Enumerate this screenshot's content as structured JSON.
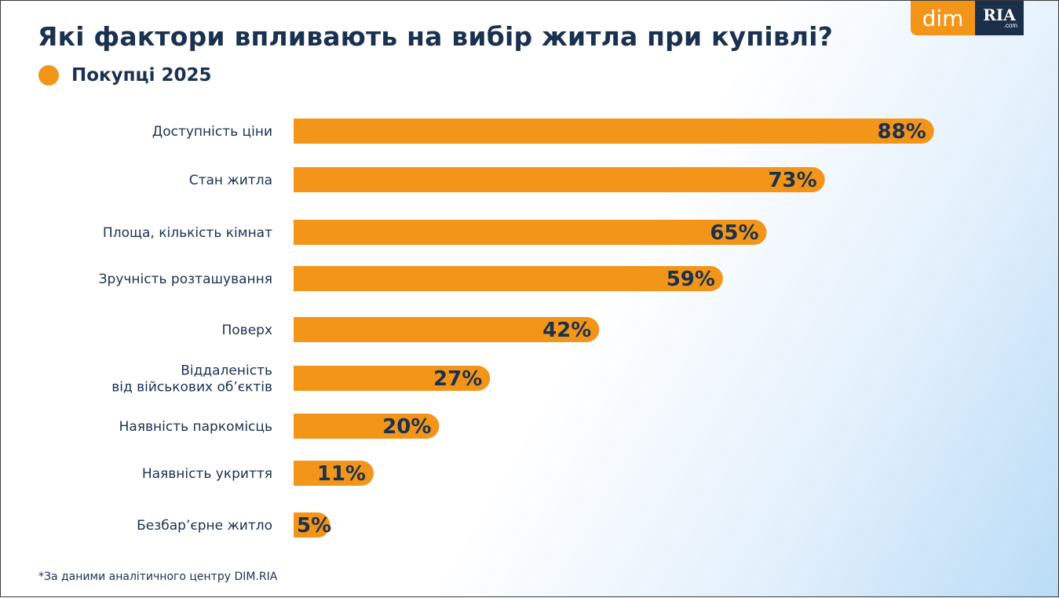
{
  "title": "Які фактори впливають на вибір житла при купівлі?",
  "logo": {
    "left": "dim",
    "right": "RIA",
    "right_sub": ".com"
  },
  "footnote": "*За даними аналітичного центру DIM.RIA",
  "colors": {
    "bar": "#f39519",
    "text": "#1a3150"
  },
  "chart_data": {
    "type": "bar",
    "orientation": "horizontal",
    "title": "Які фактори впливають на вибір житла при купівлі?",
    "legend": [
      {
        "name": "Покупці 2025",
        "color": "#f39519"
      }
    ],
    "legend_position": "top-left",
    "categories": [
      [
        "Доступність ціни"
      ],
      [
        "Стан житла"
      ],
      [
        "Площа, кількість кімнат"
      ],
      [
        "Зручність розташування"
      ],
      [
        "Поверх"
      ],
      [
        "Віддаленість",
        "від військових об’єктів"
      ],
      [
        "Наявність паркомісць"
      ],
      [
        "Наявність укриття"
      ],
      [
        "Безбар’єрне житло"
      ]
    ],
    "series": [
      {
        "name": "Покупці 2025",
        "values": [
          88,
          73,
          65,
          59,
          42,
          27,
          20,
          11,
          5
        ]
      }
    ],
    "value_suffix": "%",
    "xlabel": "",
    "ylabel": "",
    "xlim": [
      0,
      100
    ],
    "grid": false
  }
}
